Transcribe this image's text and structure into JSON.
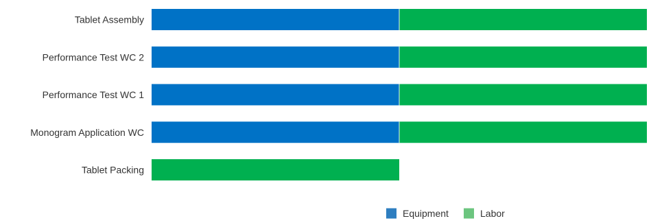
{
  "chart_data": {
    "type": "bar",
    "orientation": "horizontal",
    "stacked": true,
    "categories": [
      "Tablet Assembly",
      "Performance Test WC 2",
      "Performance Test WC 1",
      "Monogram Application WC",
      "Tablet Packing"
    ],
    "series": [
      {
        "name": "Equipment",
        "color": "#0072C6",
        "legend_color": "#2E7EC0",
        "values": [
          1,
          1,
          1,
          1,
          0
        ]
      },
      {
        "name": "Labor",
        "color": "#00B050",
        "legend_color": "#6CC57F",
        "values": [
          1,
          1,
          1,
          1,
          1
        ]
      }
    ],
    "xlim": [
      0,
      2
    ],
    "grid": false,
    "axis_labels_shown": false,
    "legend_position": "bottom-right"
  }
}
